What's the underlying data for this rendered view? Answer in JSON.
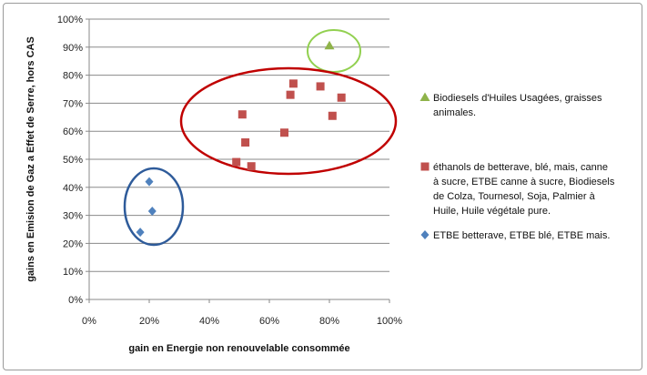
{
  "chart_data": {
    "type": "scatter",
    "xlabel": "gain en Energie non renouvelable consommée",
    "ylabel": "gains en Emision de Gaz a Effet de Serre, hors CAS",
    "xlim": [
      0,
      100
    ],
    "ylim": [
      0,
      100
    ],
    "x_ticks": [
      "0%",
      "20%",
      "40%",
      "60%",
      "80%",
      "100%"
    ],
    "y_ticks": [
      "0%",
      "10%",
      "20%",
      "30%",
      "40%",
      "50%",
      "60%",
      "70%",
      "80%",
      "90%",
      "100%"
    ],
    "grid": "horizontal",
    "legend_position": "right",
    "series": [
      {
        "name": "Biodiesels d'Huiles Usagées, graisses animales.",
        "marker": "triangle",
        "color": "#8fb34a",
        "ellipse_color": "#92d050",
        "points": [
          [
            80,
            90.5
          ]
        ]
      },
      {
        "name": "éthanols de betterave,  blé, mais, canne à sucre, ETBE canne à sucre, Biodiesels de Colza, Tournesol, Soja, Palmier à Huile, Huile végétale pure.",
        "marker": "square",
        "color": "#c0504d",
        "ellipse_color": "#c00000",
        "points": [
          [
            49,
            49
          ],
          [
            51,
            66
          ],
          [
            52,
            56
          ],
          [
            54,
            47.5
          ],
          [
            65,
            59.5
          ],
          [
            67,
            73
          ],
          [
            68,
            77
          ],
          [
            77,
            76
          ],
          [
            81,
            65.5
          ],
          [
            84,
            72
          ]
        ]
      },
      {
        "name": "ETBE betterave,  ETBE blé, ETBE mais.",
        "marker": "diamond",
        "color": "#4f81bd",
        "ellipse_color": "#2e5b9a",
        "points": [
          [
            17,
            24
          ],
          [
            20,
            42
          ],
          [
            21,
            31.5
          ]
        ]
      }
    ],
    "legend_lines": [
      [
        "Biodiesels d'Huiles Usagées, graisses",
        "animales."
      ],
      [
        "éthanols de betterave,  blé, mais, canne",
        "à sucre, ETBE canne à sucre, Biodiesels",
        "de Colza, Tournesol, Soja, Palmier à",
        "Huile, Huile végétale pure."
      ],
      [
        "ETBE betterave,  ETBE blé, ETBE mais."
      ]
    ]
  }
}
